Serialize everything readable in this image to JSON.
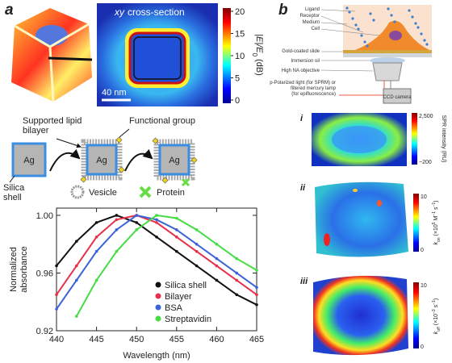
{
  "panel_a": {
    "label": "a",
    "cross_section": {
      "title_italic": "xy",
      "title": "cross-section",
      "scale_bar": "40 nm",
      "colorbar_ticks": [
        20,
        15,
        10,
        5,
        0
      ],
      "colorbar_label": {
        "main": "|E|/E",
        "sub": "0",
        "unit": "(dB)"
      }
    },
    "schematic": {
      "bilayer_label": [
        "Supported lipid",
        "bilayer"
      ],
      "functional_group": "Functional group",
      "core": "Ag",
      "shell_label": [
        "Silica",
        "shell"
      ],
      "vesicle": "Vesicle",
      "protein": "Protein"
    }
  },
  "chart_data": {
    "type": "line",
    "x_label": "Wavelength (nm)",
    "y_label": [
      "Normalized",
      "absorbance"
    ],
    "x": [
      440,
      442.5,
      445,
      447.5,
      450,
      452.5,
      455,
      457.5,
      460,
      462.5,
      465
    ],
    "series": [
      {
        "name": "Silica shell",
        "color": "#111111",
        "values": [
          0.965,
          0.982,
          0.995,
          1.0,
          0.995,
          0.985,
          0.975,
          0.965,
          0.955,
          0.945,
          0.938
        ]
      },
      {
        "name": "Bilayer",
        "color": "#e8304a",
        "values": [
          0.945,
          0.965,
          0.985,
          0.997,
          1.0,
          0.995,
          0.985,
          0.975,
          0.965,
          0.955,
          0.945
        ]
      },
      {
        "name": "BSA",
        "color": "#3b63d8",
        "values": [
          0.935,
          0.955,
          0.975,
          0.99,
          1.0,
          0.997,
          0.99,
          0.98,
          0.97,
          0.96,
          0.95
        ]
      },
      {
        "name": "Streptavidin",
        "color": "#44dd44",
        "values": [
          null,
          0.93,
          0.955,
          0.975,
          0.99,
          1.0,
          0.998,
          0.99,
          0.98,
          0.97,
          0.962
        ]
      }
    ],
    "xlim": [
      440,
      465
    ],
    "xticks": [
      440,
      445,
      450,
      455,
      460,
      465
    ],
    "ylim": [
      0.92,
      1.005
    ],
    "yticks": [
      0.92,
      0.96,
      {
        "value": 1,
        "label": "1.00"
      }
    ],
    "legend": "lower right"
  },
  "panel_b": {
    "label": "b",
    "schematic": {
      "labels": [
        "Ligand",
        "Receptor",
        "Medium",
        "Cell",
        "Gold-coated slide",
        "Immersion oil",
        "High NA objective"
      ],
      "light": [
        "p-Polarized light (for SPRM) or",
        "filtered mercury lamp",
        "(for epifluorescence)"
      ],
      "camera": "CCD camera"
    },
    "maps": [
      {
        "label": "i",
        "ticks": [
          "2,500",
          "−200"
        ],
        "colorbar_label": [
          "SPR intensity (RU)"
        ]
      },
      {
        "label": "ii",
        "ticks": [
          "10",
          "0"
        ],
        "colorbar_label": [
          "k",
          "on",
          "(×10",
          "5",
          " M",
          "−1",
          " s",
          "−1",
          ")"
        ]
      },
      {
        "label": "iii",
        "ticks": [
          "10",
          "0"
        ],
        "colorbar_label": [
          "k",
          "off",
          "(×10",
          "−3",
          " s",
          "−1",
          ")"
        ]
      }
    ]
  }
}
